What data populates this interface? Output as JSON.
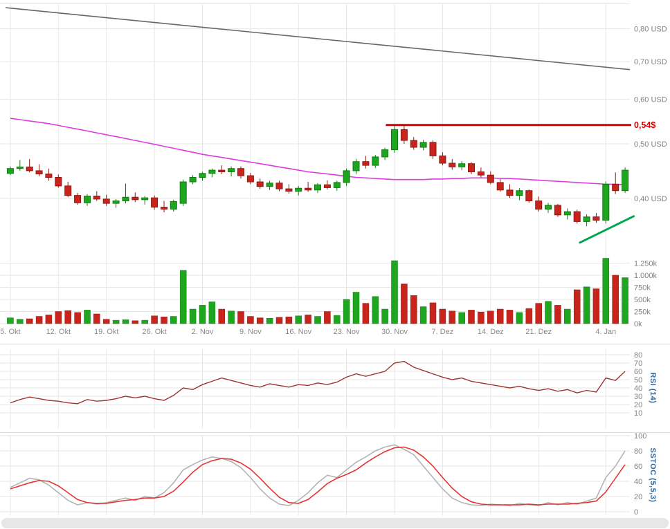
{
  "chart_data": {
    "type": "candlestick-with-indicators",
    "title": "",
    "price_ticks": [
      {
        "value": 0.8,
        "label": "0,80 USD"
      },
      {
        "value": 0.7,
        "label": "0,70 USD"
      },
      {
        "value": 0.6,
        "label": "0,60 USD"
      },
      {
        "value": 0.5,
        "label": "0,50 USD"
      },
      {
        "value": 0.4,
        "label": "0,40 USD"
      }
    ],
    "volume_ticks": [
      {
        "value": 1250,
        "label": "1.250k"
      },
      {
        "value": 1000,
        "label": "1.000k"
      },
      {
        "value": 750,
        "label": "750k"
      },
      {
        "value": 500,
        "label": "500k"
      },
      {
        "value": 250,
        "label": "250k"
      },
      {
        "value": 0,
        "label": "0k"
      }
    ],
    "x_ticks": [
      {
        "index": 0,
        "label": "5. Okt"
      },
      {
        "index": 5,
        "label": "12. Okt"
      },
      {
        "index": 10,
        "label": "19. Okt"
      },
      {
        "index": 15,
        "label": "26. Okt"
      },
      {
        "index": 20,
        "label": "2. Nov"
      },
      {
        "index": 25,
        "label": "9. Nov"
      },
      {
        "index": 30,
        "label": "16. Nov"
      },
      {
        "index": 35,
        "label": "23. Nov"
      },
      {
        "index": 40,
        "label": "30. Nov"
      },
      {
        "index": 45,
        "label": "7. Dez"
      },
      {
        "index": 50,
        "label": "14. Dez"
      },
      {
        "index": 55,
        "label": "21. Dez"
      },
      {
        "index": 62,
        "label": "4. Jan"
      }
    ],
    "ohlcv": [
      [
        0.443,
        0.456,
        0.44,
        0.452,
        120
      ],
      [
        0.452,
        0.468,
        0.448,
        0.455,
        90
      ],
      [
        0.455,
        0.47,
        0.445,
        0.448,
        100
      ],
      [
        0.448,
        0.46,
        0.438,
        0.442,
        150
      ],
      [
        0.442,
        0.452,
        0.43,
        0.436,
        180
      ],
      [
        0.436,
        0.441,
        0.418,
        0.421,
        250
      ],
      [
        0.421,
        0.428,
        0.402,
        0.405,
        270
      ],
      [
        0.405,
        0.409,
        0.39,
        0.393,
        230
      ],
      [
        0.393,
        0.407,
        0.388,
        0.404,
        280
      ],
      [
        0.404,
        0.412,
        0.396,
        0.399,
        200
      ],
      [
        0.399,
        0.406,
        0.388,
        0.392,
        90
      ],
      [
        0.392,
        0.399,
        0.385,
        0.396,
        70
      ],
      [
        0.396,
        0.425,
        0.392,
        0.402,
        80
      ],
      [
        0.402,
        0.41,
        0.394,
        0.398,
        60
      ],
      [
        0.398,
        0.404,
        0.39,
        0.401,
        70
      ],
      [
        0.401,
        0.405,
        0.382,
        0.386,
        160
      ],
      [
        0.386,
        0.396,
        0.378,
        0.383,
        140
      ],
      [
        0.383,
        0.398,
        0.379,
        0.395,
        150
      ],
      [
        0.392,
        0.432,
        0.388,
        0.428,
        1100
      ],
      [
        0.428,
        0.44,
        0.424,
        0.436,
        300
      ],
      [
        0.436,
        0.446,
        0.43,
        0.443,
        380
      ],
      [
        0.443,
        0.452,
        0.436,
        0.449,
        450
      ],
      [
        0.449,
        0.458,
        0.442,
        0.446,
        300
      ],
      [
        0.446,
        0.456,
        0.438,
        0.452,
        260
      ],
      [
        0.452,
        0.456,
        0.434,
        0.439,
        250
      ],
      [
        0.439,
        0.444,
        0.424,
        0.428,
        150
      ],
      [
        0.428,
        0.434,
        0.416,
        0.42,
        120
      ],
      [
        0.42,
        0.43,
        0.414,
        0.426,
        110
      ],
      [
        0.426,
        0.43,
        0.412,
        0.416,
        130
      ],
      [
        0.416,
        0.424,
        0.408,
        0.412,
        140
      ],
      [
        0.412,
        0.421,
        0.405,
        0.417,
        160
      ],
      [
        0.417,
        0.428,
        0.411,
        0.414,
        180
      ],
      [
        0.414,
        0.426,
        0.409,
        0.423,
        150
      ],
      [
        0.423,
        0.431,
        0.415,
        0.418,
        250
      ],
      [
        0.418,
        0.43,
        0.413,
        0.427,
        170
      ],
      [
        0.427,
        0.452,
        0.421,
        0.448,
        500
      ],
      [
        0.448,
        0.47,
        0.442,
        0.465,
        650
      ],
      [
        0.465,
        0.476,
        0.452,
        0.458,
        420
      ],
      [
        0.458,
        0.478,
        0.453,
        0.474,
        560
      ],
      [
        0.474,
        0.492,
        0.468,
        0.488,
        300
      ],
      [
        0.488,
        0.538,
        0.482,
        0.53,
        1300
      ],
      [
        0.53,
        0.54,
        0.5,
        0.507,
        820
      ],
      [
        0.507,
        0.514,
        0.488,
        0.493,
        580
      ],
      [
        0.493,
        0.508,
        0.487,
        0.503,
        350
      ],
      [
        0.503,
        0.507,
        0.47,
        0.476,
        430
      ],
      [
        0.476,
        0.483,
        0.458,
        0.462,
        300
      ],
      [
        0.462,
        0.47,
        0.45,
        0.455,
        260
      ],
      [
        0.455,
        0.466,
        0.449,
        0.461,
        230
      ],
      [
        0.461,
        0.464,
        0.442,
        0.446,
        280
      ],
      [
        0.446,
        0.454,
        0.436,
        0.44,
        240
      ],
      [
        0.44,
        0.447,
        0.424,
        0.427,
        260
      ],
      [
        0.427,
        0.433,
        0.411,
        0.414,
        300
      ],
      [
        0.414,
        0.424,
        0.401,
        0.405,
        280
      ],
      [
        0.405,
        0.417,
        0.397,
        0.413,
        230
      ],
      [
        0.413,
        0.415,
        0.393,
        0.396,
        310
      ],
      [
        0.396,
        0.403,
        0.379,
        0.383,
        420
      ],
      [
        0.383,
        0.393,
        0.377,
        0.389,
        460
      ],
      [
        0.389,
        0.391,
        0.371,
        0.374,
        380
      ],
      [
        0.374,
        0.384,
        0.367,
        0.379,
        300
      ],
      [
        0.379,
        0.382,
        0.361,
        0.364,
        700
      ],
      [
        0.364,
        0.375,
        0.357,
        0.371,
        760
      ],
      [
        0.371,
        0.377,
        0.362,
        0.366,
        720
      ],
      [
        0.366,
        0.429,
        0.361,
        0.424,
        1350
      ],
      [
        0.424,
        0.445,
        0.407,
        0.413,
        1000
      ],
      [
        0.413,
        0.454,
        0.409,
        0.449,
        950
      ]
    ],
    "ma_magenta": [
      0.555,
      0.552,
      0.549,
      0.546,
      0.543,
      0.539,
      0.535,
      0.531,
      0.527,
      0.523,
      0.519,
      0.515,
      0.511,
      0.507,
      0.503,
      0.499,
      0.495,
      0.491,
      0.487,
      0.483,
      0.479,
      0.476,
      0.473,
      0.47,
      0.467,
      0.464,
      0.461,
      0.458,
      0.455,
      0.452,
      0.449,
      0.446,
      0.444,
      0.442,
      0.44,
      0.438,
      0.436,
      0.435,
      0.434,
      0.433,
      0.432,
      0.432,
      0.432,
      0.432,
      0.433,
      0.433,
      0.434,
      0.434,
      0.435,
      0.435,
      0.435,
      0.434,
      0.434,
      0.433,
      0.432,
      0.431,
      0.43,
      0.429,
      0.428,
      0.427,
      0.426,
      0.425,
      0.424,
      0.424,
      0.423
    ],
    "resistance": {
      "price": 0.54,
      "label": "0,54$",
      "start_index": 39.6
    },
    "support_trendline": {
      "start_index": 59.8,
      "start_price": 0.334,
      "end_index": 65.4,
      "end_price": 0.372
    },
    "upper_trendline": {
      "start_index": 0,
      "start_price": 0.872,
      "end_index": 65,
      "end_price": 0.677
    },
    "rsi": {
      "label": "RSI (14)",
      "ticks": [
        80,
        70,
        60,
        50,
        40,
        30,
        20,
        10
      ],
      "values": [
        22,
        26,
        29,
        27,
        25,
        24,
        22,
        21,
        26,
        24,
        25,
        27,
        30,
        28,
        30,
        27,
        25,
        31,
        40,
        38,
        44,
        48,
        52,
        49,
        46,
        43,
        41,
        45,
        43,
        41,
        44,
        43,
        46,
        44,
        47,
        53,
        57,
        54,
        57,
        60,
        70,
        72,
        65,
        61,
        57,
        53,
        50,
        52,
        48,
        46,
        44,
        42,
        40,
        42,
        39,
        37,
        39,
        36,
        38,
        34,
        37,
        35,
        52,
        49,
        60
      ]
    },
    "stochastic": {
      "label": "SSTOC (5,5,3)",
      "ticks": [
        100,
        80,
        60,
        40,
        20,
        0
      ],
      "k": [
        32,
        38,
        44,
        42,
        35,
        25,
        15,
        9,
        12,
        10,
        12,
        15,
        18,
        15,
        20,
        18,
        25,
        38,
        55,
        62,
        68,
        72,
        70,
        66,
        58,
        45,
        30,
        18,
        10,
        8,
        15,
        25,
        38,
        48,
        45,
        55,
        65,
        72,
        80,
        85,
        88,
        82,
        75,
        60,
        45,
        30,
        18,
        12,
        9,
        8,
        10,
        9,
        8,
        11,
        9,
        8,
        12,
        9,
        12,
        10,
        14,
        18,
        45,
        60,
        80
      ],
      "d": [
        30,
        34,
        38,
        41,
        40,
        34,
        25,
        16,
        12,
        11,
        11,
        13,
        15,
        16,
        18,
        18,
        20,
        27,
        39,
        52,
        62,
        67,
        70,
        69,
        64,
        56,
        44,
        31,
        19,
        12,
        11,
        16,
        26,
        37,
        44,
        49,
        55,
        64,
        72,
        79,
        84,
        85,
        81,
        72,
        60,
        45,
        31,
        20,
        13,
        10,
        9,
        9,
        9,
        9,
        10,
        9,
        10,
        10,
        10,
        11,
        12,
        14,
        26,
        44,
        62
      ]
    },
    "colors": {
      "up": "#1fa51f",
      "up_dark": "#0f7c12",
      "down": "#c8241c",
      "down_dark": "#8f1812",
      "ma": "#e03ae0",
      "upper_line": "#666666",
      "resistance": "#d40000",
      "support": "#00a651",
      "rsi_line": "#9c3532",
      "stoch_k": "#b3b3b3",
      "stoch_d": "#e23535",
      "axis_text": "#828282",
      "grid": "#e6e6e6"
    }
  }
}
